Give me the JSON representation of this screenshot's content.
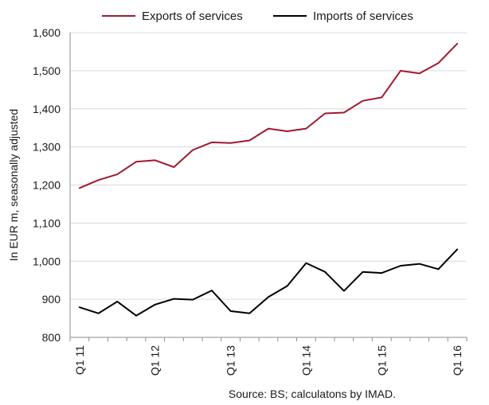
{
  "chart_data": {
    "type": "line",
    "x": [
      "Q1 11",
      "Q2 11",
      "Q3 11",
      "Q4 11",
      "Q1 12",
      "Q2 12",
      "Q3 12",
      "Q4 12",
      "Q1 13",
      "Q2 13",
      "Q3 13",
      "Q4 13",
      "Q1 14",
      "Q2 14",
      "Q3 14",
      "Q4 14",
      "Q1 15",
      "Q2 15",
      "Q3 15",
      "Q4 15",
      "Q1 16"
    ],
    "x_tick_labels": [
      "Q1 11",
      "Q1 12",
      "Q1 13",
      "Q1 14",
      "Q1 15",
      "Q1 16"
    ],
    "series": [
      {
        "name": "Exports of services",
        "color": "#a0192e",
        "values": [
          1192,
          1213,
          1228,
          1261,
          1265,
          1247,
          1292,
          1312,
          1310,
          1317,
          1348,
          1341,
          1348,
          1388,
          1390,
          1421,
          1430,
          1500,
          1493,
          1520,
          1571
        ]
      },
      {
        "name": "Imports of services",
        "color": "#000000",
        "values": [
          879,
          863,
          894,
          857,
          886,
          901,
          899,
          923,
          869,
          863,
          906,
          935,
          995,
          972,
          922,
          972,
          969,
          988,
          993,
          979,
          1031
        ]
      }
    ],
    "ylabel": "In EUR m, seasonally adjusted",
    "xlabel": "",
    "ylim": [
      800,
      1600
    ],
    "y_ticks": [
      800,
      900,
      1000,
      1100,
      1200,
      1300,
      1400,
      1500,
      1600
    ],
    "y_tick_labels": [
      "800",
      "900",
      "1,000",
      "1,100",
      "1,200",
      "1,300",
      "1,400",
      "1,500",
      "1,600"
    ],
    "grid": true,
    "legend_position": "top",
    "source_note": "Source: BS; calculatons by IMAD."
  }
}
